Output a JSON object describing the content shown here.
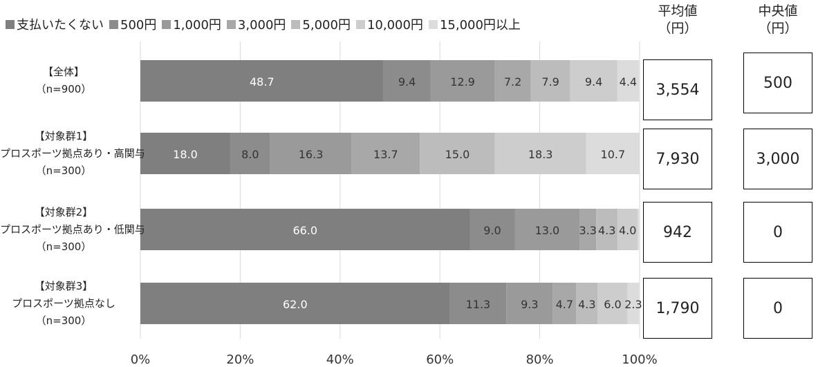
{
  "chart_data": {
    "type": "bar",
    "orientation": "horizontal",
    "stacked": "percent",
    "categories": [
      [
        "【全体】",
        "（n=900）"
      ],
      [
        "【対象群1】",
        "プロスポーツ拠点あり・高関与",
        "（n=300）"
      ],
      [
        "【対象群2】",
        "プロスポーツ拠点あり・低関与",
        "（n=300）"
      ],
      [
        "【対象群3】",
        "プロスポーツ拠点なし",
        "（n=300）"
      ]
    ],
    "series": [
      {
        "name": "支払いたくない",
        "color": "#7f7f7f",
        "values": [
          48.7,
          18.0,
          66.0,
          62.0
        ]
      },
      {
        "name": "500円",
        "color": "#8c8c8c",
        "values": [
          9.4,
          8.0,
          9.0,
          11.3
        ]
      },
      {
        "name": "1,000円",
        "color": "#9a9a9a",
        "values": [
          12.9,
          16.3,
          13.0,
          9.3
        ]
      },
      {
        "name": "3,000円",
        "color": "#a8a8a8",
        "values": [
          7.2,
          13.7,
          3.3,
          4.7
        ]
      },
      {
        "name": "5,000円",
        "color": "#bcbcbc",
        "values": [
          7.9,
          15.0,
          4.3,
          4.3
        ]
      },
      {
        "name": "10,000円",
        "color": "#cdcdcd",
        "values": [
          9.4,
          18.3,
          4.0,
          6.0
        ]
      },
      {
        "name": "15,000円以上",
        "color": "#dcdcdc",
        "values": [
          4.4,
          10.7,
          0.3,
          2.3
        ]
      }
    ],
    "value_labels": [
      [
        "48.7",
        "9.4",
        "12.9",
        "7.2",
        "7.9",
        "9.4",
        "4.4"
      ],
      [
        "18.0",
        "8.0",
        "16.3",
        "13.7",
        "15.0",
        "18.3",
        "10.7"
      ],
      [
        "66.0",
        "9.0",
        "13.0",
        "3.3",
        "4.3",
        "4.0",
        ""
      ],
      [
        "62.0",
        "11.3",
        "9.3",
        "4.7",
        "4.3",
        "6.0",
        "2.3"
      ]
    ],
    "xlim": [
      0,
      100
    ],
    "xticks": [
      "0%",
      "20%",
      "40%",
      "60%",
      "80%",
      "100%"
    ],
    "grid": true,
    "legend_position": "top"
  },
  "stats": {
    "mean_header": [
      "平均値",
      "（円）"
    ],
    "median_header": [
      "中央値",
      "（円）"
    ],
    "mean": [
      "3,554",
      "7,930",
      "942",
      "1,790"
    ],
    "median": [
      "500",
      "3,000",
      "0",
      "0"
    ]
  }
}
